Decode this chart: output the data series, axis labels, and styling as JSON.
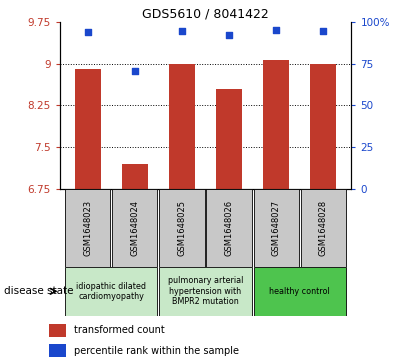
{
  "title": "GDS5610 / 8041422",
  "samples": [
    "GSM1648023",
    "GSM1648024",
    "GSM1648025",
    "GSM1648026",
    "GSM1648027",
    "GSM1648028"
  ],
  "red_values": [
    8.9,
    7.2,
    9.0,
    8.55,
    9.07,
    9.0
  ],
  "blue_values": [
    9.56,
    8.87,
    9.59,
    9.52,
    9.61,
    9.58
  ],
  "ylim_left": [
    6.75,
    9.75
  ],
  "ylim_right": [
    0,
    100
  ],
  "yticks_left": [
    6.75,
    7.5,
    8.25,
    9.0,
    9.75
  ],
  "yticks_right": [
    0,
    25,
    50,
    75,
    100
  ],
  "ytick_labels_left": [
    "6.75",
    "7.5",
    "8.25",
    "9",
    "9.75"
  ],
  "ytick_labels_right": [
    "0",
    "25",
    "50",
    "75",
    "100%"
  ],
  "bar_color": "#c0392b",
  "dot_color": "#1a47cc",
  "bg_color": "#c8c8c8",
  "group_light_green": "#c8e8c8",
  "group_dark_green": "#4ec44e",
  "legend_red": "transformed count",
  "legend_blue": "percentile rank within the sample",
  "disease_state_label": "disease state",
  "group_labels": [
    "idiopathic dilated\ncardiomyopathy",
    "pulmonary arterial\nhypertension with\nBMPR2 mutation",
    "healthy control"
  ],
  "group_ranges": [
    [
      0,
      1
    ],
    [
      2,
      3
    ],
    [
      4,
      5
    ]
  ],
  "group_colors": [
    "#c8e8c8",
    "#c8e8c8",
    "#4ec44e"
  ]
}
